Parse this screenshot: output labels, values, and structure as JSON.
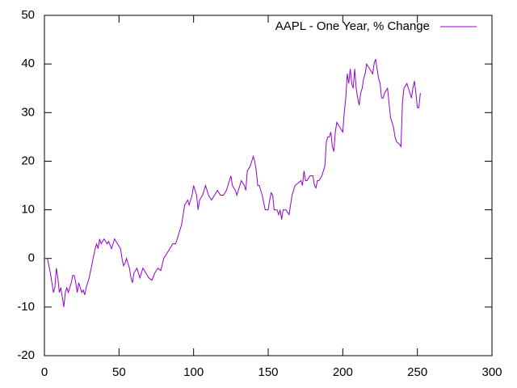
{
  "chart_data": {
    "type": "line",
    "legend": "top-right",
    "xlim": [
      0,
      300
    ],
    "ylim": [
      -20,
      50
    ],
    "xticks": [
      0,
      50,
      100,
      150,
      200,
      250,
      300
    ],
    "yticks": [
      -20,
      -10,
      0,
      10,
      20,
      30,
      40,
      50
    ],
    "series": [
      {
        "name": "AAPL - One Year, % Change",
        "color": "#9400d3",
        "x": [
          0,
          2,
          4,
          6,
          7,
          8,
          9,
          10,
          11,
          12,
          13,
          14,
          15,
          16,
          17,
          18,
          19,
          20,
          21,
          22,
          23,
          24,
          25,
          26,
          27,
          28,
          30,
          32,
          34,
          35,
          36,
          37,
          38,
          40,
          42,
          43,
          45,
          47,
          49,
          51,
          52,
          53,
          54,
          55,
          56,
          57,
          58,
          59,
          60,
          62,
          64,
          66,
          68,
          70,
          72,
          74,
          76,
          78,
          80,
          82,
          84,
          86,
          88,
          90,
          92,
          94,
          96,
          97,
          98,
          99,
          100,
          102,
          103,
          104,
          106,
          108,
          110,
          112,
          114,
          116,
          118,
          120,
          122,
          124,
          125,
          126,
          128,
          129,
          130,
          132,
          134,
          135,
          136,
          138,
          140,
          141,
          142,
          143,
          144,
          146,
          148,
          150,
          151,
          152,
          153,
          154,
          156,
          157,
          158,
          159,
          160,
          162,
          164,
          165,
          166,
          168,
          170,
          172,
          173,
          174,
          175,
          176,
          178,
          180,
          181,
          182,
          183,
          184,
          186,
          188,
          189,
          190,
          191,
          192,
          193,
          194,
          195,
          196,
          198,
          200,
          201,
          202,
          203,
          204,
          205,
          206,
          207,
          208,
          209,
          210,
          211,
          212,
          213,
          214,
          215,
          216,
          218,
          220,
          221,
          222,
          223,
          224,
          225,
          226,
          227,
          228,
          230,
          231,
          232,
          234,
          235,
          236,
          238,
          239,
          240,
          241,
          243,
          244,
          245,
          246,
          247,
          248,
          249,
          250,
          251,
          252
        ],
        "values": [
          0,
          0,
          -3,
          -7,
          -6,
          -2,
          -4,
          -7,
          -6,
          -8,
          -10,
          -7,
          -6,
          -7,
          -6,
          -5,
          -3.5,
          -3.5,
          -5,
          -7,
          -5,
          -6,
          -7,
          -6.5,
          -7.5,
          -6,
          -4,
          -1,
          2,
          3,
          2,
          4,
          3,
          4,
          3,
          3.5,
          2,
          4,
          3,
          2,
          0,
          -1.5,
          -1,
          0,
          -1,
          -2,
          -4,
          -5,
          -3,
          -2,
          -4,
          -2,
          -3,
          -4,
          -4.5,
          -3,
          -2,
          -2.5,
          0,
          1,
          2,
          3,
          3,
          5,
          7,
          11,
          12,
          11,
          12,
          13,
          15,
          13,
          10,
          12,
          13,
          15,
          13,
          12,
          13,
          14,
          13,
          13,
          14,
          16,
          17,
          15,
          14,
          13,
          14,
          16,
          15,
          14,
          18,
          19,
          21,
          20,
          18,
          15,
          15,
          13,
          10,
          10,
          12,
          13.5,
          13,
          10,
          10,
          9,
          10,
          8,
          10,
          10,
          9,
          11,
          13,
          15,
          15.5,
          16,
          15,
          18,
          16,
          16,
          17,
          17,
          15,
          14.5,
          16,
          16,
          17,
          19,
          24,
          25,
          25,
          26,
          23,
          22,
          26,
          28,
          27,
          26,
          30,
          33,
          38,
          36,
          39,
          36,
          35,
          39,
          35,
          33,
          31.5,
          34,
          35,
          37,
          38,
          40,
          39,
          38,
          40,
          41,
          39,
          37,
          36,
          33,
          33,
          34,
          35,
          32,
          29,
          27,
          25,
          24,
          23.5,
          23,
          32,
          35,
          36,
          35,
          34,
          33,
          35,
          36.5,
          34,
          31,
          31,
          34
        ]
      }
    ]
  }
}
